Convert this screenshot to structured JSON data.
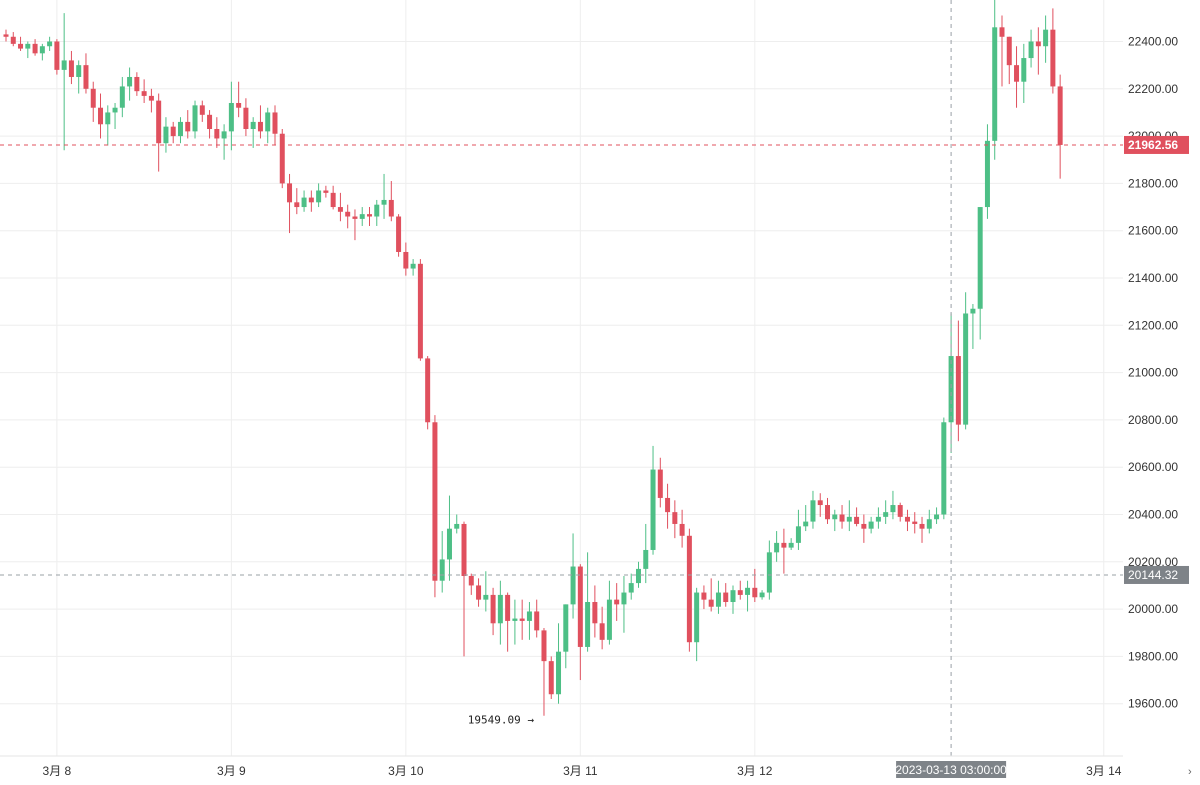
{
  "chart_data": {
    "type": "candlestick",
    "title": "",
    "xlabel": "",
    "ylabel": "",
    "ylim": [
      19450,
      22580
    ],
    "grid": true,
    "y_ticks": [
      "19600.00",
      "19800.00",
      "20000.00",
      "20200.00",
      "20400.00",
      "20600.00",
      "20800.00",
      "21000.00",
      "21200.00",
      "21400.00",
      "21600.00",
      "21800.00",
      "22000.00",
      "22200.00",
      "22400.00"
    ],
    "y_tick_values": [
      19600,
      19800,
      20000,
      20200,
      20400,
      20600,
      20800,
      21000,
      21200,
      21400,
      21600,
      21800,
      22000,
      22200,
      22400
    ],
    "x_ticks": [
      {
        "label": "3月 8",
        "bar": 7
      },
      {
        "label": "3月 9",
        "bar": 31
      },
      {
        "label": "3月 10",
        "bar": 55
      },
      {
        "label": "3月 11",
        "bar": 79
      },
      {
        "label": "3月 12",
        "bar": 103
      },
      {
        "label": "3月 14",
        "bar": 151
      }
    ],
    "last_price": {
      "value": 21962.56,
      "label": "21962.56",
      "color": "#e0505e"
    },
    "crosshair": {
      "bar": 130,
      "value": 20144.32,
      "price_label": "20144.32",
      "time_label": "2023-03-13 03:00:00"
    },
    "min_annotation": {
      "bar": 74,
      "value": 19549.09,
      "label": "19549.09"
    },
    "colors": {
      "up": "#4dbf86",
      "down": "#e0505e",
      "grid": "#eeeeee",
      "crosshair": "#9aa0a6",
      "label_bg": "#7e8388"
    },
    "candles": [
      [
        22430,
        22450,
        22400,
        22420
      ],
      [
        22420,
        22440,
        22380,
        22390
      ],
      [
        22390,
        22420,
        22360,
        22370
      ],
      [
        22370,
        22400,
        22330,
        22390
      ],
      [
        22390,
        22410,
        22340,
        22350
      ],
      [
        22350,
        22390,
        22320,
        22380
      ],
      [
        22380,
        22420,
        22360,
        22400
      ],
      [
        22400,
        22410,
        22260,
        22280
      ],
      [
        22280,
        22520,
        21940,
        22320
      ],
      [
        22320,
        22360,
        22220,
        22250
      ],
      [
        22250,
        22320,
        22180,
        22300
      ],
      [
        22300,
        22350,
        22180,
        22200
      ],
      [
        22200,
        22230,
        22060,
        22120
      ],
      [
        22120,
        22180,
        21990,
        22050
      ],
      [
        22050,
        22130,
        21960,
        22100
      ],
      [
        22100,
        22140,
        22030,
        22120
      ],
      [
        22120,
        22250,
        22080,
        22210
      ],
      [
        22210,
        22290,
        22150,
        22250
      ],
      [
        22250,
        22270,
        22170,
        22190
      ],
      [
        22190,
        22240,
        22140,
        22170
      ],
      [
        22170,
        22200,
        22100,
        22150
      ],
      [
        22150,
        22180,
        21850,
        21970
      ],
      [
        21970,
        22080,
        21930,
        22040
      ],
      [
        22040,
        22060,
        21970,
        22000
      ],
      [
        22000,
        22080,
        21970,
        22060
      ],
      [
        22060,
        22110,
        21990,
        22020
      ],
      [
        22020,
        22150,
        21990,
        22130
      ],
      [
        22130,
        22150,
        22060,
        22090
      ],
      [
        22090,
        22110,
        21990,
        22030
      ],
      [
        22030,
        22080,
        21950,
        21990
      ],
      [
        21990,
        22050,
        21900,
        22020
      ],
      [
        22020,
        22230,
        21940,
        22140
      ],
      [
        22140,
        22230,
        22080,
        22120
      ],
      [
        22120,
        22160,
        22000,
        22030
      ],
      [
        22030,
        22080,
        21950,
        22060
      ],
      [
        22060,
        22130,
        21990,
        22020
      ],
      [
        22020,
        22120,
        21970,
        22100
      ],
      [
        22100,
        22130,
        21960,
        22010
      ],
      [
        22010,
        22030,
        21780,
        21800
      ],
      [
        21800,
        21840,
        21590,
        21720
      ],
      [
        21720,
        21780,
        21670,
        21700
      ],
      [
        21700,
        21770,
        21680,
        21740
      ],
      [
        21740,
        21770,
        21680,
        21720
      ],
      [
        21720,
        21800,
        21700,
        21770
      ],
      [
        21770,
        21790,
        21740,
        21760
      ],
      [
        21760,
        21790,
        21690,
        21700
      ],
      [
        21700,
        21760,
        21640,
        21680
      ],
      [
        21680,
        21710,
        21610,
        21660
      ],
      [
        21660,
        21690,
        21560,
        21650
      ],
      [
        21650,
        21700,
        21620,
        21670
      ],
      [
        21670,
        21700,
        21620,
        21660
      ],
      [
        21660,
        21730,
        21620,
        21710
      ],
      [
        21710,
        21840,
        21650,
        21730
      ],
      [
        21730,
        21810,
        21640,
        21660
      ],
      [
        21660,
        21670,
        21490,
        21510
      ],
      [
        21510,
        21550,
        21410,
        21440
      ],
      [
        21440,
        21480,
        21410,
        21460
      ],
      [
        21460,
        21480,
        21050,
        21060
      ],
      [
        21060,
        21070,
        20760,
        20790
      ],
      [
        20790,
        20820,
        20050,
        20120
      ],
      [
        20120,
        20330,
        20070,
        20210
      ],
      [
        20210,
        20480,
        20120,
        20340
      ],
      [
        20340,
        20400,
        20320,
        20360
      ],
      [
        20360,
        20370,
        19800,
        20140
      ],
      [
        20140,
        20150,
        20060,
        20100
      ],
      [
        20100,
        20130,
        20010,
        20040
      ],
      [
        20040,
        20160,
        19990,
        20060
      ],
      [
        20060,
        20090,
        19890,
        19940
      ],
      [
        19940,
        20120,
        19850,
        20060
      ],
      [
        20060,
        20070,
        19820,
        19950
      ],
      [
        19950,
        20040,
        19850,
        19960
      ],
      [
        19960,
        20040,
        19870,
        19950
      ],
      [
        19950,
        20030,
        19870,
        19990
      ],
      [
        19990,
        20040,
        19880,
        19910
      ],
      [
        19910,
        19920,
        19549.09,
        19780
      ],
      [
        19780,
        19800,
        19620,
        19640
      ],
      [
        19640,
        19940,
        19600,
        19820
      ],
      [
        19820,
        20020,
        19750,
        20020
      ],
      [
        20020,
        20320,
        19960,
        20180
      ],
      [
        20180,
        20190,
        19700,
        19840
      ],
      [
        19840,
        20240,
        19820,
        20030
      ],
      [
        20030,
        20100,
        19880,
        19940
      ],
      [
        19940,
        20010,
        19830,
        19870
      ],
      [
        19870,
        20120,
        19850,
        20040
      ],
      [
        20040,
        20110,
        19950,
        20020
      ],
      [
        20020,
        20140,
        19900,
        20070
      ],
      [
        20070,
        20150,
        20040,
        20110
      ],
      [
        20110,
        20200,
        20090,
        20170
      ],
      [
        20170,
        20360,
        20110,
        20250
      ],
      [
        20250,
        20690,
        20230,
        20590
      ],
      [
        20590,
        20640,
        20430,
        20470
      ],
      [
        20470,
        20530,
        20340,
        20410
      ],
      [
        20410,
        20460,
        20300,
        20360
      ],
      [
        20360,
        20420,
        20260,
        20310
      ],
      [
        20310,
        20340,
        19820,
        19860
      ],
      [
        19860,
        20090,
        19780,
        20070
      ],
      [
        20070,
        20100,
        20000,
        20040
      ],
      [
        20040,
        20130,
        19990,
        20010
      ],
      [
        20010,
        20120,
        19980,
        20070
      ],
      [
        20070,
        20110,
        20010,
        20030
      ],
      [
        20030,
        20100,
        19980,
        20080
      ],
      [
        20080,
        20120,
        20040,
        20060
      ],
      [
        20060,
        20120,
        19990,
        20090
      ],
      [
        20090,
        20170,
        20030,
        20050
      ],
      [
        20050,
        20080,
        20040,
        20070
      ],
      [
        20070,
        20290,
        20040,
        20240
      ],
      [
        20240,
        20330,
        20200,
        20280
      ],
      [
        20280,
        20340,
        20150,
        20260
      ],
      [
        20260,
        20300,
        20250,
        20280
      ],
      [
        20280,
        20420,
        20250,
        20350
      ],
      [
        20350,
        20440,
        20330,
        20370
      ],
      [
        20370,
        20500,
        20340,
        20460
      ],
      [
        20460,
        20490,
        20390,
        20440
      ],
      [
        20440,
        20470,
        20360,
        20380
      ],
      [
        20380,
        20420,
        20330,
        20400
      ],
      [
        20400,
        20440,
        20340,
        20370
      ],
      [
        20370,
        20460,
        20330,
        20390
      ],
      [
        20390,
        20430,
        20350,
        20360
      ],
      [
        20360,
        20400,
        20280,
        20340
      ],
      [
        20340,
        20390,
        20320,
        20370
      ],
      [
        20370,
        20430,
        20340,
        20390
      ],
      [
        20390,
        20460,
        20360,
        20410
      ],
      [
        20410,
        20500,
        20380,
        20440
      ],
      [
        20440,
        20450,
        20370,
        20390
      ],
      [
        20390,
        20420,
        20330,
        20370
      ],
      [
        20370,
        20410,
        20320,
        20360
      ],
      [
        20360,
        20390,
        20280,
        20340
      ],
      [
        20340,
        20420,
        20320,
        20380
      ],
      [
        20380,
        20430,
        20360,
        20400
      ],
      [
        20400,
        20810,
        20380,
        20790
      ],
      [
        20790,
        21250,
        20660,
        21070
      ],
      [
        21070,
        21220,
        20710,
        20780
      ],
      [
        20780,
        21340,
        20760,
        21250
      ],
      [
        21250,
        21290,
        21100,
        21270
      ],
      [
        21270,
        21700,
        21140,
        21700
      ],
      [
        21700,
        22050,
        21650,
        21980
      ],
      [
        21980,
        22590,
        21900,
        22460
      ],
      [
        22460,
        22510,
        22210,
        22420
      ],
      [
        22420,
        22420,
        22220,
        22300
      ],
      [
        22300,
        22380,
        22120,
        22230
      ],
      [
        22230,
        22390,
        22140,
        22330
      ],
      [
        22330,
        22450,
        22290,
        22400
      ],
      [
        22400,
        22460,
        22260,
        22380
      ],
      [
        22380,
        22510,
        22310,
        22450
      ],
      [
        22450,
        22540,
        22180,
        22210
      ],
      [
        22210,
        22260,
        21820,
        21962.56
      ]
    ]
  }
}
